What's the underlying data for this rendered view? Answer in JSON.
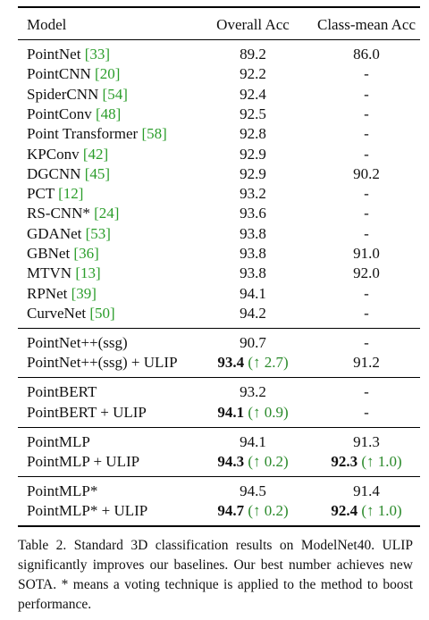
{
  "table": {
    "header": [
      "Model",
      "Overall Acc",
      "Class-mean Acc"
    ],
    "groups": [
      [
        {
          "model": "PointNet",
          "cite": "[33]",
          "overall": "89.2",
          "classmean": "86.0"
        },
        {
          "model": "PointCNN",
          "cite": "[20]",
          "overall": "92.2",
          "classmean": "-"
        },
        {
          "model": "SpiderCNN",
          "cite": "[54]",
          "overall": "92.4",
          "classmean": "-"
        },
        {
          "model": "PointConv",
          "cite": "[48]",
          "overall": "92.5",
          "classmean": "-"
        },
        {
          "model": "Point Transformer",
          "cite": "[58]",
          "overall": "92.8",
          "classmean": "-"
        },
        {
          "model": "KPConv",
          "cite": "[42]",
          "overall": "92.9",
          "classmean": "-"
        },
        {
          "model": "DGCNN",
          "cite": "[45]",
          "overall": "92.9",
          "classmean": "90.2"
        },
        {
          "model": "PCT",
          "cite": "[12]",
          "overall": "93.2",
          "classmean": "-"
        },
        {
          "model": "RS-CNN*",
          "cite": "[24]",
          "overall": "93.6",
          "classmean": "-"
        },
        {
          "model": "GDANet",
          "cite": "[53]",
          "overall": "93.8",
          "classmean": "-"
        },
        {
          "model": "GBNet",
          "cite": "[36]",
          "overall": "93.8",
          "classmean": "91.0"
        },
        {
          "model": "MTVN",
          "cite": "[13]",
          "overall": "93.8",
          "classmean": "92.0"
        },
        {
          "model": "RPNet",
          "cite": "[39]",
          "overall": "94.1",
          "classmean": "-"
        },
        {
          "model": "CurveNet",
          "cite": "[50]",
          "overall": "94.2",
          "classmean": "-"
        }
      ],
      [
        {
          "model": "PointNet++(ssg)",
          "overall": "90.7",
          "classmean": "-"
        },
        {
          "model": "PointNet++(ssg) + ULIP",
          "overall": "93.4",
          "overall_gain": "(↑ 2.7)",
          "classmean": "91.2"
        }
      ],
      [
        {
          "model": "PointBERT",
          "overall": "93.2",
          "classmean": "-"
        },
        {
          "model": "PointBERT + ULIP",
          "overall": "94.1",
          "overall_gain": "(↑ 0.9)",
          "classmean": "-"
        }
      ],
      [
        {
          "model": "PointMLP",
          "overall": "94.1",
          "classmean": "91.3"
        },
        {
          "model": "PointMLP + ULIP",
          "overall": "94.3",
          "overall_gain": "(↑ 0.2)",
          "classmean": "92.3",
          "classmean_gain": "(↑ 1.0)"
        }
      ],
      [
        {
          "model": "PointMLP*",
          "overall": "94.5",
          "classmean": "91.4"
        },
        {
          "model": "PointMLP* + ULIP",
          "overall": "94.7",
          "overall_gain": "(↑ 0.2)",
          "classmean": "92.4",
          "classmean_gain": "(↑ 1.0)"
        }
      ]
    ],
    "caption": "Table 2. Standard 3D classification results on ModelNet40. ULIP significantly improves our baselines. Our best number achieves new SOTA. * means a voting technique is applied to the method to boost performance."
  }
}
